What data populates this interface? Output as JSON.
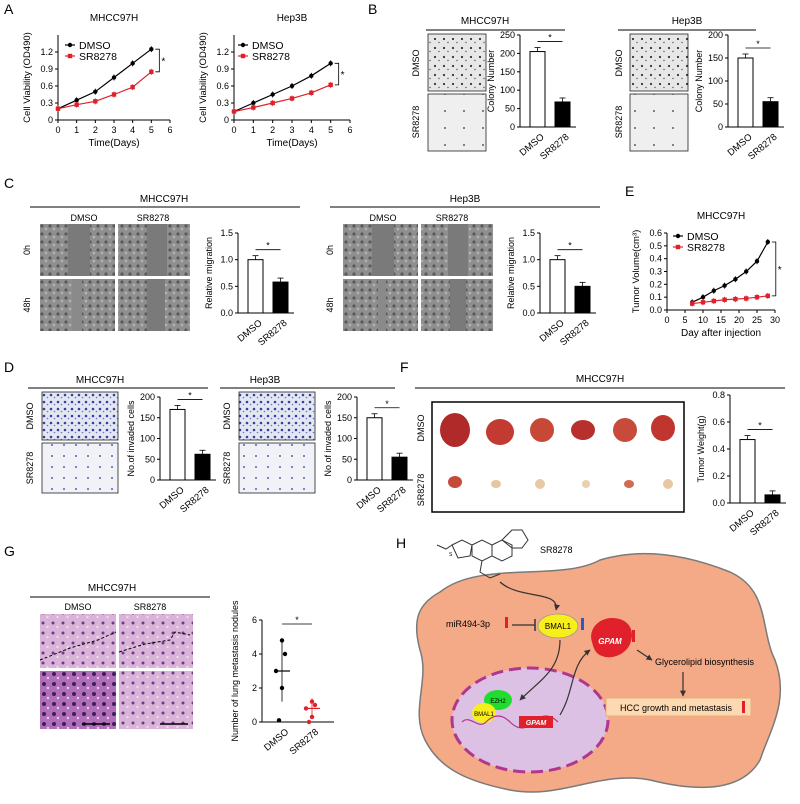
{
  "panel_labels": [
    "A",
    "B",
    "C",
    "D",
    "E",
    "F",
    "G",
    "H"
  ],
  "colors": {
    "dmso": "#000000",
    "sr8278": "#e0202a",
    "bar_dmso": "#ffffff",
    "bar_sr": "#000000",
    "cell": "#f4a987",
    "cell_edge": "#7a7a7a",
    "nucleus": "#dcc1e4",
    "nucleus_edge": "#b0368f",
    "bmal1": "#f8ee1b",
    "ezh2": "#1fdc2e",
    "gpam": "#e0202a",
    "hcc_box": "#fdd9b2"
  },
  "chart_data": [
    {
      "id": "A1",
      "type": "line",
      "title": "MHCC97H",
      "xlabel": "Time(Days)",
      "ylabel": "Cell Viability (OD490)",
      "x": [
        0,
        1,
        2,
        3,
        4,
        5
      ],
      "xlim": [
        0,
        6
      ],
      "ylim": [
        0,
        1.5
      ],
      "xticks": [
        0,
        1,
        2,
        3,
        4,
        5,
        6
      ],
      "yticks": [
        0,
        0.3,
        0.6,
        0.9,
        1.2
      ],
      "ytick_labels": [
        "0",
        "0.3",
        "0.6",
        "0.9",
        "1.2"
      ],
      "series": [
        {
          "name": "DMSO",
          "values": [
            0.2,
            0.35,
            0.5,
            0.75,
            1.0,
            1.25
          ]
        },
        {
          "name": "SR8278",
          "values": [
            0.2,
            0.27,
            0.33,
            0.45,
            0.58,
            0.85
          ]
        }
      ],
      "sig": "*"
    },
    {
      "id": "A2",
      "type": "line",
      "title": "Hep3B",
      "xlabel": "Time(Days)",
      "ylabel": "Cell Viability (OD490)",
      "x": [
        0,
        1,
        2,
        3,
        4,
        5
      ],
      "xlim": [
        0,
        6
      ],
      "ylim": [
        0,
        1.5
      ],
      "xticks": [
        0,
        1,
        2,
        3,
        4,
        5,
        6
      ],
      "yticks": [
        0,
        0.3,
        0.6,
        0.9,
        1.2
      ],
      "ytick_labels": [
        "0",
        "0.3",
        "0.6",
        "0.9",
        "1.2"
      ],
      "series": [
        {
          "name": "DMSO",
          "values": [
            0.15,
            0.3,
            0.45,
            0.6,
            0.78,
            1.0
          ]
        },
        {
          "name": "SR8278",
          "values": [
            0.15,
            0.22,
            0.3,
            0.38,
            0.48,
            0.62
          ]
        }
      ],
      "sig": "*"
    },
    {
      "id": "B1",
      "type": "bar",
      "title": "MHCC97H",
      "ylabel": "Colony Number",
      "categories": [
        "DMSO",
        "SR8278"
      ],
      "values": [
        205,
        68
      ],
      "ylim": [
        0,
        250
      ],
      "yticks": [
        0,
        50,
        100,
        150,
        200,
        250
      ],
      "sig": "*"
    },
    {
      "id": "B2",
      "type": "bar",
      "title": "Hep3B",
      "ylabel": "Colony Number",
      "categories": [
        "DMSO",
        "SR8278"
      ],
      "values": [
        150,
        55
      ],
      "ylim": [
        0,
        200
      ],
      "yticks": [
        0,
        50,
        100,
        150,
        200
      ],
      "sig": "*"
    },
    {
      "id": "C1",
      "type": "bar",
      "title": "MHCC97H",
      "ylabel": "Relative migration",
      "categories": [
        "DMSO",
        "SR8278"
      ],
      "values": [
        1.0,
        0.58
      ],
      "ylim": [
        0,
        1.5
      ],
      "yticks": [
        0,
        0.5,
        1.0,
        1.5
      ],
      "ytick_labels": [
        "0.0",
        "0.5",
        "1.0",
        "1.5"
      ],
      "sig": "*"
    },
    {
      "id": "C2",
      "type": "bar",
      "title": "Hep3B",
      "ylabel": "Relative migration",
      "categories": [
        "DMSO",
        "SR8278"
      ],
      "values": [
        1.0,
        0.5
      ],
      "ylim": [
        0,
        1.5
      ],
      "yticks": [
        0,
        0.5,
        1.0,
        1.5
      ],
      "ytick_labels": [
        "0.0",
        "0.5",
        "1.0",
        "1.5"
      ],
      "sig": "*"
    },
    {
      "id": "D1",
      "type": "bar",
      "title": "MHCC97H",
      "ylabel": "No.of invaded cells",
      "categories": [
        "DMSO",
        "SR8278"
      ],
      "values": [
        170,
        62
      ],
      "ylim": [
        0,
        200
      ],
      "yticks": [
        0,
        50,
        100,
        150,
        200
      ],
      "sig": "*"
    },
    {
      "id": "D2",
      "type": "bar",
      "title": "Hep3B",
      "ylabel": "No.of invaded cells",
      "categories": [
        "DMSO",
        "SR8278"
      ],
      "values": [
        150,
        55
      ],
      "ylim": [
        0,
        200
      ],
      "yticks": [
        0,
        50,
        100,
        150,
        200
      ],
      "sig": "*"
    },
    {
      "id": "E",
      "type": "line",
      "title": "MHCC97H",
      "xlabel": "Day after injection",
      "ylabel": "Tumor Volume(cm³)",
      "x": [
        7,
        10,
        13,
        16,
        19,
        22,
        25,
        28
      ],
      "xlim": [
        0,
        30
      ],
      "ylim": [
        0,
        0.6
      ],
      "xticks": [
        0,
        5,
        10,
        15,
        20,
        25,
        30
      ],
      "yticks": [
        0,
        0.1,
        0.2,
        0.3,
        0.4,
        0.5,
        0.6
      ],
      "ytick_labels": [
        "0.0",
        "0.1",
        "0.2",
        "0.3",
        "0.4",
        "0.5",
        "0.6"
      ],
      "series": [
        {
          "name": "DMSO",
          "values": [
            0.06,
            0.1,
            0.15,
            0.19,
            0.24,
            0.3,
            0.38,
            0.53
          ]
        },
        {
          "name": "SR8278",
          "values": [
            0.05,
            0.06,
            0.07,
            0.08,
            0.085,
            0.09,
            0.1,
            0.11
          ]
        }
      ],
      "sig": "*"
    },
    {
      "id": "F",
      "type": "bar",
      "ylabel": "Tumor Weight(g)",
      "categories": [
        "DMSO",
        "SR8278"
      ],
      "values": [
        0.47,
        0.06
      ],
      "ylim": [
        0,
        0.8
      ],
      "yticks": [
        0,
        0.2,
        0.4,
        0.6,
        0.8
      ],
      "ytick_labels": [
        "0.0",
        "0.2",
        "0.4",
        "0.6",
        "0.8"
      ],
      "sig": "*"
    },
    {
      "id": "G",
      "type": "scatter",
      "ylabel": "Number of lung metastasis nodules",
      "categories": [
        "DMSO",
        "SR8278"
      ],
      "ylim": [
        0,
        6
      ],
      "yticks": [
        0,
        2,
        4,
        6
      ],
      "points": [
        [
          4.8,
          4.0,
          3.0,
          2.0,
          0.1
        ],
        [
          1.2,
          1.0,
          0.8,
          0.3,
          0.0
        ]
      ],
      "means": [
        3.0,
        0.8
      ],
      "sd": [
        1.8,
        0.6
      ],
      "sig": "*"
    }
  ],
  "labels": {
    "A_legend": [
      "DMSO",
      "SR8278"
    ],
    "B_titles": [
      "MHCC97H",
      "Hep3B"
    ],
    "C_titles": [
      "MHCC97H",
      "Hep3B"
    ],
    "C_rows": [
      "0h",
      "48h"
    ],
    "C_cols": [
      "DMSO",
      "SR8278"
    ],
    "D_titles": [
      "MHCC97H",
      "Hep3B"
    ],
    "E_legend": [
      "DMSO",
      "SR8278"
    ],
    "F_title": "MHCC97H",
    "G_title": "MHCC97H",
    "G_cols": [
      "DMSO",
      "SR8278"
    ],
    "row_dmso": "DMSO",
    "row_sr": "SR8278"
  },
  "diagram": {
    "drug": "SR8278",
    "mirna": "miR494-3p",
    "bmal1": "BMAL1",
    "bmal1_small": "BMAL1",
    "ezh2": "EZH2",
    "gpam": "GPAM",
    "gpam_gene": "GPAM",
    "glycerolipid": "Glycerolipid biosynthesis",
    "hcc": "HCC growth and metastasis"
  }
}
